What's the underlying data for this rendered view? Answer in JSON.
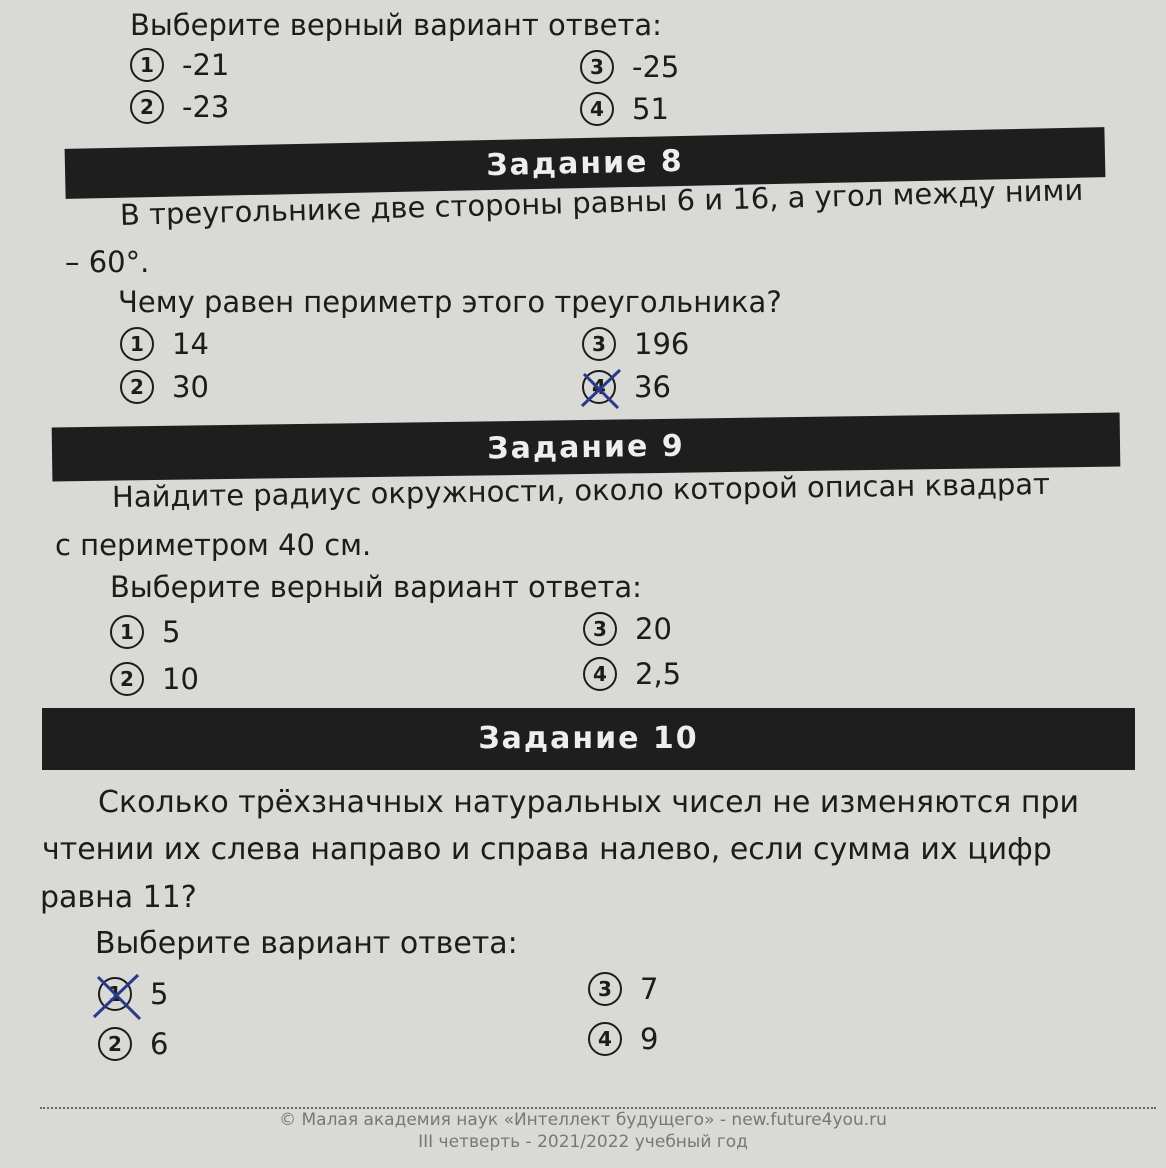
{
  "task7": {
    "prompt": "Выберите верный вариант ответа:",
    "options": [
      {
        "n": "1",
        "value": "-21"
      },
      {
        "n": "2",
        "value": "-23"
      },
      {
        "n": "3",
        "value": "-25"
      },
      {
        "n": "4",
        "value": "51"
      }
    ]
  },
  "task8": {
    "header": "Задание 8",
    "line1": "В треугольнике две стороны равны 6 и 16, а угол между ними",
    "line2": "– 60°.",
    "question": "Чему равен периметр этого треугольника?",
    "options": [
      {
        "n": "1",
        "value": "14"
      },
      {
        "n": "2",
        "value": "30"
      },
      {
        "n": "3",
        "value": "196"
      },
      {
        "n": "4",
        "value": "36",
        "crossed": true
      }
    ]
  },
  "task9": {
    "header": "Задание 9",
    "line1": "Найдите радиус окружности, около которой описан квадрат",
    "line2": "с периметром 40 см.",
    "prompt": "Выберите верный вариант ответа:",
    "options": [
      {
        "n": "1",
        "value": "5"
      },
      {
        "n": "2",
        "value": "10"
      },
      {
        "n": "3",
        "value": "20"
      },
      {
        "n": "4",
        "value": "2,5"
      }
    ]
  },
  "task10": {
    "header": "Задание 10",
    "line1": "Сколько трёхзначных натуральных чисел не изменяются при",
    "line2": "чтении их слева направо и справа налево, если сумма их цифр",
    "line3": "равна 11?",
    "prompt": "Выберите вариант ответа:",
    "options": [
      {
        "n": "1",
        "value": "5",
        "crossed": true
      },
      {
        "n": "2",
        "value": "6"
      },
      {
        "n": "3",
        "value": "7"
      },
      {
        "n": "4",
        "value": "9"
      }
    ]
  },
  "footer": {
    "line1": "© Малая академия наук «Интеллект будущего» - new.future4you.ru",
    "line2": "III четверть - 2021/2022 учебный год"
  },
  "colors": {
    "pen": "#2a3a8a",
    "bar": "#1e1e1e",
    "paper": "#d9d9d6"
  }
}
